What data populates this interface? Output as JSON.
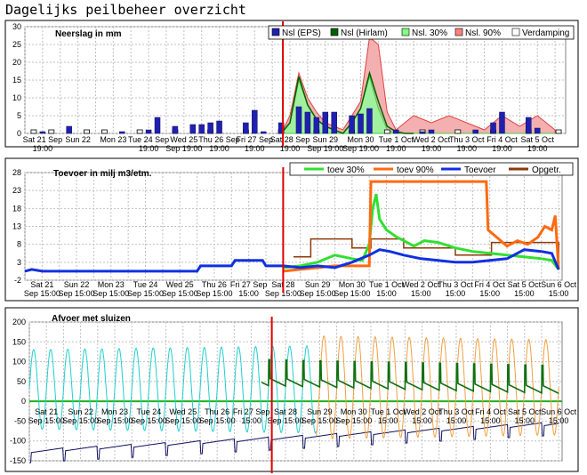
{
  "page": {
    "title": "Dagelijks peilbeheer overzicht"
  },
  "colors": {
    "grid": "#c0c0c0",
    "frame": "#808080",
    "marker": "#e00000"
  },
  "chart_data": [
    {
      "type": "bar",
      "title": "Neerslag in mm",
      "ylim": [
        0,
        30
      ],
      "yticks": [
        "0",
        "5",
        "10",
        "15",
        "20",
        "25",
        "30"
      ],
      "xtick_labels": [
        [
          "Sat 21 Sep",
          "19:00"
        ],
        [
          "Sun 22",
          ""
        ],
        [
          "Mon 23",
          ""
        ],
        [
          "Tue 24 Sep",
          "19:00"
        ],
        [
          "Wed 25",
          "Sep 19:00"
        ],
        [
          "Thu 26 Sep",
          "19:00"
        ],
        [
          "Fri 27 Sep",
          "19:00"
        ],
        [
          "Sat 28 Sep",
          "19:00"
        ],
        [
          "Sun 29",
          "Sep 19:00"
        ],
        [
          "Mon 30",
          "Sep 19:00"
        ],
        [
          "Tue 1 Oct",
          "19:00"
        ],
        [
          "Wed 2 Oct",
          "19:00"
        ],
        [
          "Thu 3 Oct",
          "19:00"
        ],
        [
          "Fri 4 Oct",
          "19:00"
        ],
        [
          "Sat 5 Oct",
          "19:00"
        ]
      ],
      "xrange_days": [
        0,
        15.3
      ],
      "marker_day": 7.3,
      "legend": [
        {
          "label": "Nsl (EPS)",
          "color": "#2020b0"
        },
        {
          "label": "Nsl (Hirlam)",
          "color": "#006000"
        },
        {
          "label": "Nsl. 30%",
          "color": "#80ff80"
        },
        {
          "label": "Nsl. 90%",
          "color": "#ff8080"
        },
        {
          "label": "Verdamping",
          "color": "#ffffff"
        }
      ],
      "series": [
        {
          "name": "Nsl (EPS)",
          "x": [
            0.5,
            1.25,
            2.75,
            3.5,
            3.75,
            4.25,
            4.75,
            5,
            5.25,
            5.5,
            6.25,
            6.5,
            6.75,
            7.25,
            7.75,
            8,
            8.25,
            8.5,
            8.75,
            9.25,
            9.5,
            9.75,
            10.5,
            11.25,
            11.5,
            12.75,
            13.25,
            13.5,
            14.25,
            14.5
          ],
          "values": [
            0.5,
            2,
            0.5,
            1,
            4.5,
            2,
            2.5,
            2.5,
            3,
            3.5,
            3,
            6.5,
            0.5,
            3,
            7.5,
            6,
            4.5,
            6,
            6,
            5,
            5.5,
            7,
            1,
            0.5,
            1,
            1,
            3,
            6,
            4.5,
            1.5
          ]
        },
        {
          "name": "Nsl (Hirlam)",
          "x": [
            7.25,
            7.5,
            7.75,
            8,
            8.25,
            8.5,
            8.75,
            9,
            9.25,
            9.5,
            9.75,
            10,
            10.25,
            10.5,
            10.75,
            11
          ],
          "values": [
            0,
            3,
            16,
            8,
            4,
            2,
            1,
            0,
            3,
            7,
            17,
            9,
            2,
            0.5,
            0,
            0
          ]
        },
        {
          "name": "Nsl. 30%",
          "x": [
            7.25,
            7.5,
            7.75,
            8,
            8.25,
            8.5,
            8.75,
            9,
            9.25,
            9.5,
            9.75,
            10,
            10.25,
            10.5,
            11,
            11.5,
            12,
            12.5,
            13,
            13.5,
            14,
            14.5,
            15
          ],
          "values": [
            0,
            3,
            15,
            8,
            4,
            2,
            1,
            0,
            3,
            7,
            16,
            7,
            1,
            0,
            0,
            0,
            0,
            0,
            0,
            0,
            0,
            0,
            0
          ]
        },
        {
          "name": "Nsl. 90%",
          "x": [
            7.25,
            7.5,
            7.75,
            8,
            8.25,
            8.5,
            8.75,
            9,
            9.25,
            9.5,
            9.75,
            10,
            10.25,
            10.5,
            11,
            11.5,
            12,
            12.5,
            13,
            13.5,
            14,
            14.5,
            15
          ],
          "values": [
            0,
            5,
            17,
            10,
            6,
            3,
            2,
            1,
            5,
            9,
            27,
            25,
            6,
            1,
            5,
            3,
            5,
            3,
            1,
            5,
            2,
            5,
            1
          ]
        },
        {
          "name": "Verdamping",
          "x": [
            0.25,
            0.75,
            1.75,
            2.25,
            3.25,
            4.25,
            5.25,
            6.25,
            7.25,
            8.25,
            9.25,
            10.25,
            11.25,
            12.25,
            13.25,
            14.25,
            15.1
          ],
          "values": [
            1,
            1,
            1,
            1,
            1,
            1,
            1,
            1,
            1,
            1,
            1,
            1,
            1,
            1,
            1,
            1,
            1
          ]
        }
      ]
    },
    {
      "type": "line",
      "title": "Toevoer in milj m3/etm.",
      "ylim": [
        -2,
        28
      ],
      "yticks": [
        "-2",
        "3",
        "8",
        "13",
        "18",
        "23",
        "28"
      ],
      "xtick_labels": [
        [
          "Sat 21",
          "Sep 15:00"
        ],
        [
          "Sun 22",
          "Sep 15:00"
        ],
        [
          "Mon 23",
          "Sep 15:00"
        ],
        [
          "Tue 24",
          "Sep 15:00"
        ],
        [
          "Wed 25",
          "Sep 15:00"
        ],
        [
          "Thu 26",
          "Sep 15:00"
        ],
        [
          "Fri 27 Sep",
          "15:00"
        ],
        [
          "Sat 28",
          "Sep 15:00"
        ],
        [
          "Sun 29",
          "Sep 15:00"
        ],
        [
          "Mon 30",
          "Sep 15:00"
        ],
        [
          "Tue 1 Oct",
          "15:00"
        ],
        [
          "Wed 2 Oct",
          "15:00"
        ],
        [
          "Thu 3 Oct",
          "15:00"
        ],
        [
          "Fri 4 Oct",
          "15:00"
        ],
        [
          "Sat 5 Oct",
          "15:00"
        ],
        [
          "Sun 6 Oct",
          "15:00"
        ]
      ],
      "xrange_days": [
        0,
        15.6
      ],
      "marker_day": 7.5,
      "legend": [
        {
          "label": "toev 30%",
          "color": "#30e030"
        },
        {
          "label": "toev 90%",
          "color": "#ff6a10"
        },
        {
          "label": "Toevoer",
          "color": "#1030e0"
        },
        {
          "label": "Opgetr.",
          "color": "#8b3a0a"
        }
      ],
      "series": [
        {
          "name": "toev 30%",
          "x": [
            7.5,
            8,
            8.5,
            9,
            9.5,
            9.8,
            10,
            10.1,
            10.2,
            10.3,
            10.5,
            10.8,
            11,
            11.3,
            11.6,
            12,
            12.5,
            13,
            13.5,
            14,
            14.5,
            15,
            15.3,
            15.5
          ],
          "values": [
            1.5,
            2,
            3,
            5,
            4,
            3.5,
            8,
            18,
            22,
            15,
            12,
            10,
            9,
            7.5,
            9,
            8.5,
            7,
            6,
            5.5,
            5,
            4.5,
            4,
            3.5,
            1
          ]
        },
        {
          "name": "toev 90%",
          "x": [
            7.5,
            8,
            9,
            9.5,
            9.8,
            10,
            10.05,
            13.4,
            13.45,
            13.7,
            14,
            14.3,
            14.6,
            14.9,
            15.1,
            15.3,
            15.4,
            15.5
          ],
          "values": [
            0.5,
            1,
            2,
            2,
            2,
            2,
            25.5,
            25.5,
            12,
            10,
            7.5,
            9,
            8,
            10,
            13,
            12,
            16,
            1
          ]
        },
        {
          "name": "Toevoer",
          "x": [
            0,
            0.2,
            0.5,
            5,
            5.1,
            6,
            6.1,
            6.9,
            7,
            7.5,
            8,
            8.5,
            9,
            9.5,
            10,
            10.3,
            10.6,
            11,
            11.5,
            12,
            12.5,
            13,
            13.5,
            14,
            14.5,
            15,
            15.3,
            15.5
          ],
          "values": [
            0.5,
            1,
            0.5,
            0.5,
            2,
            2,
            3.5,
            3.5,
            2,
            2,
            1.5,
            2,
            1.5,
            3,
            5,
            6.5,
            6,
            5,
            4,
            3.5,
            3,
            3,
            3.5,
            4,
            6.5,
            6,
            5.5,
            1
          ]
        },
        {
          "name": "Opgetr.",
          "x": [
            7.8,
            8,
            8.3,
            9,
            9.5,
            10,
            10.05,
            10.5,
            11,
            11.5,
            12,
            12.5,
            13,
            13.5,
            13.55,
            14,
            14.5,
            15,
            15.5
          ],
          "values": [
            4.5,
            4.5,
            9.5,
            9.5,
            7,
            7,
            9.5,
            9.5,
            7,
            7,
            7,
            5,
            5,
            5,
            8.5,
            8.5,
            8.5,
            8.5,
            4
          ]
        }
      ]
    },
    {
      "type": "line",
      "title": "Afvoer met sluizen",
      "ylim": [
        -150,
        200
      ],
      "yticks": [
        "-150",
        "-100",
        "-50",
        "0",
        "50",
        "100",
        "150",
        "200"
      ],
      "xtick_labels": [
        [
          "Sat 21",
          "Sep 15:00"
        ],
        [
          "Sun 22",
          "Sep 15:00"
        ],
        [
          "Mon 23",
          "Sep 15:00"
        ],
        [
          "Tue 24",
          "Sep 15:00"
        ],
        [
          "Wed 25",
          "Sep 15:00"
        ],
        [
          "Thu 26",
          "Sep 15:00"
        ],
        [
          "Fri 27 Sep",
          "15:00"
        ],
        [
          "Sat 28",
          "Sep 15:00"
        ],
        [
          "Sun 29",
          "Sep 15:00"
        ],
        [
          "Mon 30",
          "Sep 15:00"
        ],
        [
          "Tue 1 Oct",
          "15:00"
        ],
        [
          "Wed 2 Oct",
          "15:00"
        ],
        [
          "Thu 3 Oct",
          "15:00"
        ],
        [
          "Fri 4 Oct",
          "15:00"
        ],
        [
          "Sat 5 Oct",
          "15:00"
        ],
        [
          "Sun 6 Oct",
          "15:00"
        ]
      ],
      "xrange_days": [
        0,
        15.6
      ],
      "marker_day": 7.1,
      "series": [
        {
          "name": "tidal (cyan)",
          "color": "#20d0d0",
          "x_start": 0,
          "x_end": 8.4,
          "period_days": 0.5,
          "center": 30,
          "amplitude": [
            100,
            110
          ]
        },
        {
          "name": "tidal (orange)",
          "color": "#f0a040",
          "x_start": 8.4,
          "x_end": 15.5,
          "period_days": 0.5,
          "center": 35,
          "amplitude": [
            130,
            120
          ]
        },
        {
          "name": "afvoer (green)",
          "color": "#107010",
          "x_start": 6.8,
          "x_end": 15.5,
          "base": [
            60,
            40
          ],
          "spike": 105,
          "period_days": 0.5
        },
        {
          "name": "sluizen (navy)",
          "color": "#101060",
          "x_start": 0,
          "x_end": 15.5,
          "base": [
            -130,
            -60
          ]
        }
      ]
    }
  ]
}
